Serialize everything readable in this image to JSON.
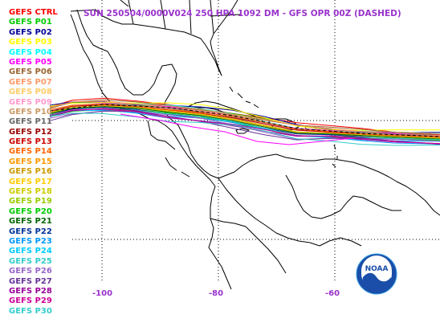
{
  "title": "SUN 250504/0000V024  250 HPA 1092 DM - GFS OPR 00Z (DASHED)",
  "title_color": "#9933cc",
  "legend": [
    {
      "label": "GEFS CTRL",
      "color": "#ff0000"
    },
    {
      "label": "GEFS P01",
      "color": "#00cc00"
    },
    {
      "label": "GEFS P02",
      "color": "#000099"
    },
    {
      "label": "GEFS P03",
      "color": "#ffff00"
    },
    {
      "label": "GEFS P04",
      "color": "#00ffff"
    },
    {
      "label": "GEFS P05",
      "color": "#ff00ff"
    },
    {
      "label": "GEFS P06",
      "color": "#996633"
    },
    {
      "label": "GEFS P07",
      "color": "#ff9966"
    },
    {
      "label": "GEFS P08",
      "color": "#ffcc66"
    },
    {
      "label": "GEFS P09",
      "color": "#ff99cc"
    },
    {
      "label": "GEFS P10",
      "color": "#cc9966"
    },
    {
      "label": "GEFS P11",
      "color": "#666666"
    },
    {
      "label": "GEFS P12",
      "color": "#990000"
    },
    {
      "label": "GEFS P13",
      "color": "#cc0000"
    },
    {
      "label": "GEFS P14",
      "color": "#ff6600"
    },
    {
      "label": "GEFS P15",
      "color": "#ff9900"
    },
    {
      "label": "GEFS P16",
      "color": "#cc9900"
    },
    {
      "label": "GEFS P17",
      "color": "#ffcc00"
    },
    {
      "label": "GEFS P18",
      "color": "#cccc00"
    },
    {
      "label": "GEFS P19",
      "color": "#99cc00"
    },
    {
      "label": "GEFS P20",
      "color": "#00cc00"
    },
    {
      "label": "GEFS P21",
      "color": "#006600"
    },
    {
      "label": "GEFS P22",
      "color": "#003399"
    },
    {
      "label": "GEFS P23",
      "color": "#0099ff"
    },
    {
      "label": "GEFS P24",
      "color": "#00ccff"
    },
    {
      "label": "GEFS P25",
      "color": "#33cccc"
    },
    {
      "label": "GEFS P26",
      "color": "#9966cc"
    },
    {
      "label": "GEFS P27",
      "color": "#663399"
    },
    {
      "label": "GEFS P28",
      "color": "#990099"
    },
    {
      "label": "GEFS P29",
      "color": "#cc0099"
    },
    {
      "label": "GEFS P30",
      "color": "#33cccc"
    }
  ],
  "longitude_labels": [
    {
      "text": "-100",
      "lon": -100
    },
    {
      "text": "-80",
      "lon": -80
    },
    {
      "text": "-60",
      "lon": -60
    }
  ],
  "label_color": "#9933cc",
  "logo": {
    "text": "NOAA",
    "icon": "noaa-logo-icon"
  }
}
